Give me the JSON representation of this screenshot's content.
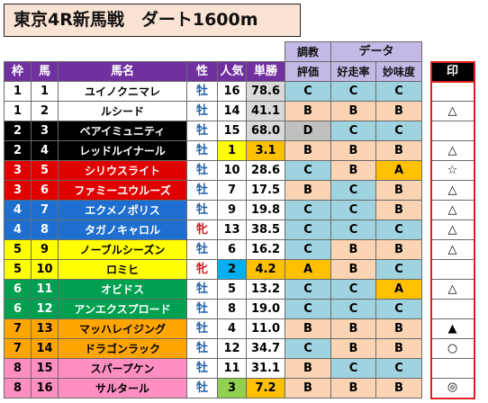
{
  "title": "東京4R新馬戦　ダート1600m",
  "headers": {
    "waku": "枠",
    "uma": "馬",
    "name": "馬名",
    "sex": "性",
    "ninki": "人気",
    "odds": "単勝",
    "chokyo1": "調教",
    "chokyo2": "評価",
    "data": "データ",
    "kousou": "好走率",
    "mimi": "妙味度",
    "mark": "印"
  },
  "colors": {
    "waku1": "#ffffff",
    "waku2": "#000000",
    "waku3": "#e00000",
    "waku4": "#1f6fd0",
    "waku5": "#ffff00",
    "waku6": "#00a050",
    "waku7": "#ffa500",
    "waku8": "#ff8fc0",
    "grade_C": "#9ed3df",
    "grade_B": "#fbd4b4",
    "grade_D": "#c0c0c0",
    "grade_A": "#ffc000",
    "pop1": "#ffff00",
    "pop2": "#00b0f0",
    "pop3": "#92d050",
    "odds_low": "#ffc000",
    "odds_gray": "#d9d9d9"
  },
  "rows": [
    {
      "waku": "1",
      "uma": "1",
      "name": "ユイノクニマレ",
      "sex": "牡",
      "ninki": "16",
      "odds": "78.6",
      "chokyo": "C",
      "kousou": "C",
      "mimi": "C",
      "mark": ""
    },
    {
      "waku": "1",
      "uma": "2",
      "name": "ルシード",
      "sex": "牡",
      "ninki": "14",
      "odds": "41.1",
      "chokyo": "B",
      "kousou": "B",
      "mimi": "B",
      "mark": "△"
    },
    {
      "waku": "2",
      "uma": "3",
      "name": "ベアイミュニティ",
      "sex": "牡",
      "ninki": "15",
      "odds": "68.0",
      "chokyo": "D",
      "kousou": "C",
      "mimi": "C",
      "mark": ""
    },
    {
      "waku": "2",
      "uma": "4",
      "name": "レッドルイナール",
      "sex": "牡",
      "ninki": "1",
      "odds": "3.1",
      "chokyo": "B",
      "kousou": "B",
      "mimi": "B",
      "mark": "△"
    },
    {
      "waku": "3",
      "uma": "5",
      "name": "シリウスライト",
      "sex": "牡",
      "ninki": "10",
      "odds": "28.6",
      "chokyo": "C",
      "kousou": "B",
      "mimi": "A",
      "mark": "☆"
    },
    {
      "waku": "3",
      "uma": "6",
      "name": "ファミーユウルーズ",
      "sex": "牡",
      "ninki": "7",
      "odds": "17.5",
      "chokyo": "B",
      "kousou": "C",
      "mimi": "B",
      "mark": "△"
    },
    {
      "waku": "4",
      "uma": "7",
      "name": "エクメノポリス",
      "sex": "牡",
      "ninki": "9",
      "odds": "19.8",
      "chokyo": "C",
      "kousou": "C",
      "mimi": "B",
      "mark": "△"
    },
    {
      "waku": "4",
      "uma": "8",
      "name": "タガノキャロル",
      "sex": "牝",
      "ninki": "13",
      "odds": "38.5",
      "chokyo": "C",
      "kousou": "C",
      "mimi": "C",
      "mark": "△"
    },
    {
      "waku": "5",
      "uma": "9",
      "name": "ノーブルシーズン",
      "sex": "牡",
      "ninki": "6",
      "odds": "16.2",
      "chokyo": "C",
      "kousou": "B",
      "mimi": "B",
      "mark": "△"
    },
    {
      "waku": "5",
      "uma": "10",
      "name": "ロミヒ",
      "sex": "牝",
      "ninki": "2",
      "odds": "4.2",
      "chokyo": "A",
      "kousou": "B",
      "mimi": "C",
      "mark": ""
    },
    {
      "waku": "6",
      "uma": "11",
      "name": "オビドス",
      "sex": "牡",
      "ninki": "5",
      "odds": "13.2",
      "chokyo": "C",
      "kousou": "C",
      "mimi": "A",
      "mark": "△"
    },
    {
      "waku": "6",
      "uma": "12",
      "name": "アンエクスプロード",
      "sex": "牡",
      "ninki": "8",
      "odds": "19.0",
      "chokyo": "C",
      "kousou": "C",
      "mimi": "C",
      "mark": ""
    },
    {
      "waku": "7",
      "uma": "13",
      "name": "マッハレイジング",
      "sex": "牡",
      "ninki": "4",
      "odds": "11.0",
      "chokyo": "B",
      "kousou": "B",
      "mimi": "B",
      "mark": "▲"
    },
    {
      "waku": "7",
      "uma": "14",
      "name": "ドラゴンラック",
      "sex": "牡",
      "ninki": "12",
      "odds": "34.7",
      "chokyo": "C",
      "kousou": "B",
      "mimi": "B",
      "mark": "○"
    },
    {
      "waku": "8",
      "uma": "15",
      "name": "スパープケン",
      "sex": "牡",
      "ninki": "11",
      "odds": "31.1",
      "chokyo": "B",
      "kousou": "C",
      "mimi": "C",
      "mark": ""
    },
    {
      "waku": "8",
      "uma": "16",
      "name": "サルタール",
      "sex": "牡",
      "ninki": "3",
      "odds": "7.2",
      "chokyo": "B",
      "kousou": "B",
      "mimi": "B",
      "mark": "◎"
    }
  ]
}
